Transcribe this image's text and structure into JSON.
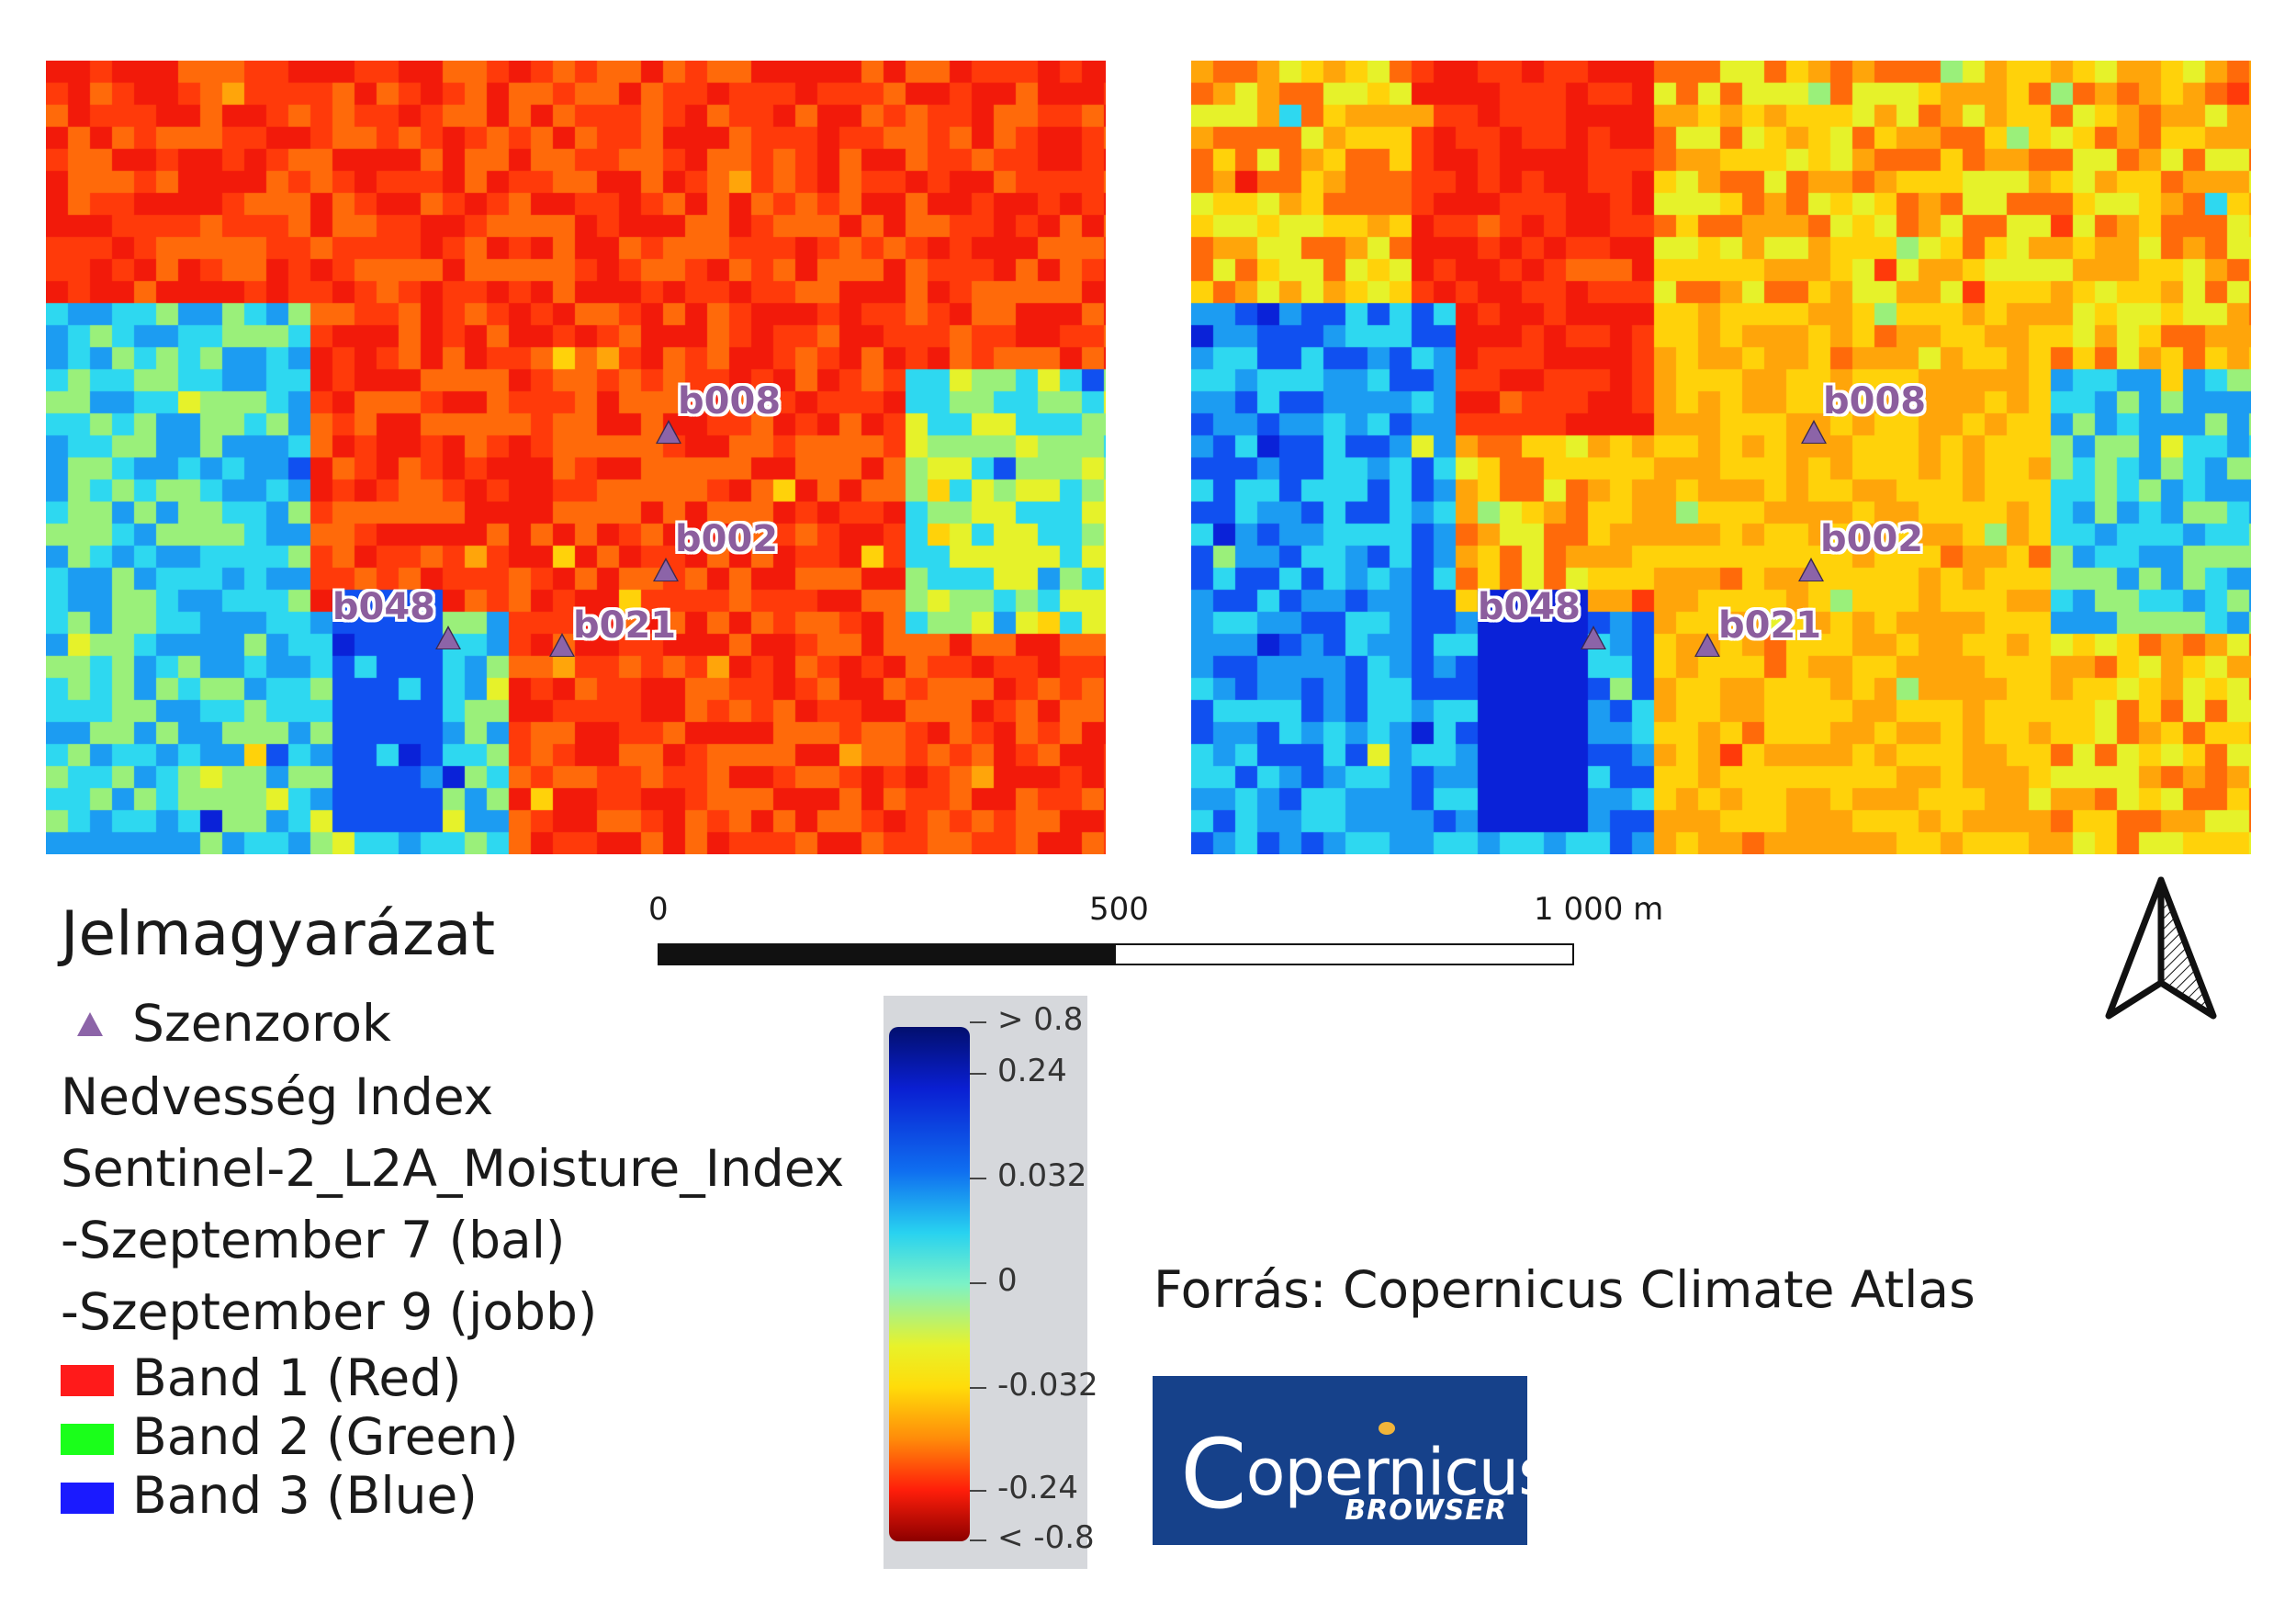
{
  "maps": {
    "left": {
      "caption": "Szeptember 7 (bal)"
    },
    "right": {
      "caption": "Szeptember 9 (jobb)"
    }
  },
  "sensors": [
    {
      "id": "b008",
      "label": "b008"
    },
    {
      "id": "b002",
      "label": "b002"
    },
    {
      "id": "b048",
      "label": "b048"
    },
    {
      "id": "b021",
      "label": "b021"
    }
  ],
  "legend": {
    "title": "Jelmagyarázat",
    "sensor_label": "Szenzorok",
    "index_name": "Nedvesség Index",
    "layer_name": "Sentinel-2_L2A_Moisture_Index",
    "date_left": "-Szeptember 7 (bal)",
    "date_right": "-Szeptember 9 (jobb)",
    "bands": [
      {
        "label": "Band 1 (Red)",
        "color": "#ff1a1a"
      },
      {
        "label": "Band 2 (Green)",
        "color": "#1aff1a"
      },
      {
        "label": "Band 3 (Blue)",
        "color": "#1a1aff"
      }
    ]
  },
  "scalebar": {
    "labels": [
      "0",
      "500",
      "1 000 m"
    ]
  },
  "colorbar": {
    "labels": [
      "> 0.8",
      "0.24",
      "0.032",
      "0",
      "-0.032",
      "-0.24",
      "< -0.8"
    ]
  },
  "source": {
    "text": "Forrás: Copernicus Climate Atlas"
  },
  "logo": {
    "main": "Copernicus",
    "sub": "BROWSER"
  },
  "colors": {
    "sensor_marker": "#8c64a8",
    "sensor_label": "#8c5e9e",
    "logo_bg": "#16418a"
  },
  "icons": {
    "north_arrow": "north-arrow-icon",
    "sensor": "triangle-marker-icon"
  }
}
